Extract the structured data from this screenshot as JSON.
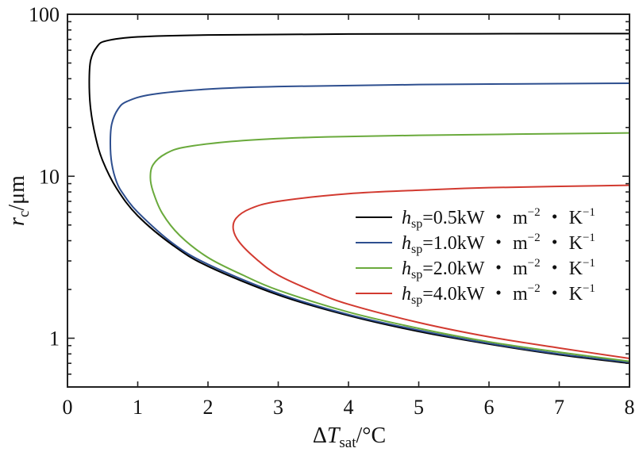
{
  "chart_data": {
    "type": "line",
    "x_axis": {
      "label_main": "ΔT",
      "label_italic": "T",
      "label_sub": "sat",
      "label_unit": "/°C",
      "range": [
        0,
        8
      ],
      "ticks": [
        0,
        1,
        2,
        3,
        4,
        5,
        6,
        7,
        8
      ],
      "tick_labels": [
        "0",
        "1",
        "2",
        "3",
        "4",
        "5",
        "6",
        "7",
        "8"
      ]
    },
    "y_axis": {
      "label_italic": "r",
      "label_sub": "c",
      "label_unit": "/μm",
      "scale": "log",
      "range": [
        0.5,
        100
      ],
      "ticks": [
        1,
        10,
        100
      ],
      "tick_labels": [
        "1",
        "10",
        "100"
      ]
    },
    "grid": false,
    "legend_position": "center-right",
    "series": [
      {
        "name": "hsp=0.5kW・m−2・K−1",
        "legend_h": "h",
        "legend_sub": "sp",
        "legend_value": "=0.5kW ・ m",
        "legend_exp1": "−2",
        "legend_mid": " ・ K",
        "legend_exp2": "−1",
        "color": "#000000",
        "points": [
          [
            8,
            0.7
          ],
          [
            7,
            0.79
          ],
          [
            6,
            0.92
          ],
          [
            5,
            1.1
          ],
          [
            4,
            1.38
          ],
          [
            3,
            1.85
          ],
          [
            2,
            2.78
          ],
          [
            1.5,
            3.75
          ],
          [
            1,
            5.7
          ],
          [
            0.7,
            8.4
          ],
          [
            0.5,
            12.5
          ],
          [
            0.4,
            17.5
          ],
          [
            0.33,
            26
          ],
          [
            0.31,
            38
          ],
          [
            0.33,
            52
          ],
          [
            0.42,
            63
          ],
          [
            0.55,
            68.5
          ],
          [
            1,
            72.5
          ],
          [
            2,
            74.5
          ],
          [
            4,
            75.5
          ],
          [
            8,
            76
          ]
        ]
      },
      {
        "name": "hsp=1.0kW・m−2・K−1",
        "legend_h": "h",
        "legend_sub": "sp",
        "legend_value": "=1.0kW ・ m",
        "legend_exp1": "−2",
        "legend_mid": " ・ K",
        "legend_exp2": "−1",
        "color": "#2e4f8f",
        "points": [
          [
            8,
            0.71
          ],
          [
            7,
            0.8
          ],
          [
            6,
            0.93
          ],
          [
            5,
            1.12
          ],
          [
            4,
            1.4
          ],
          [
            3,
            1.89
          ],
          [
            2,
            2.86
          ],
          [
            1.5,
            3.85
          ],
          [
            1,
            6.0
          ],
          [
            0.8,
            7.7
          ],
          [
            0.7,
            9.2
          ],
          [
            0.63,
            12
          ],
          [
            0.61,
            16
          ],
          [
            0.63,
            21
          ],
          [
            0.72,
            26
          ],
          [
            0.85,
            29
          ],
          [
            1.2,
            32
          ],
          [
            2,
            34.5
          ],
          [
            3,
            35.8
          ],
          [
            5,
            36.8
          ],
          [
            8,
            37.5
          ]
        ]
      },
      {
        "name": "hsp=2.0kW・m−2・K−1",
        "legend_h": "h",
        "legend_sub": "sp",
        "legend_value": "=2.0kW ・ m",
        "legend_exp1": "−2",
        "legend_mid": " ・ K",
        "legend_exp2": "−1",
        "color": "#6aaa3c",
        "points": [
          [
            8,
            0.72
          ],
          [
            7,
            0.82
          ],
          [
            6,
            0.95
          ],
          [
            5,
            1.15
          ],
          [
            4,
            1.45
          ],
          [
            3,
            1.98
          ],
          [
            2.5,
            2.45
          ],
          [
            2,
            3.15
          ],
          [
            1.6,
            4.3
          ],
          [
            1.35,
            5.9
          ],
          [
            1.22,
            8.0
          ],
          [
            1.18,
            9.8
          ],
          [
            1.22,
            11.8
          ],
          [
            1.4,
            13.8
          ],
          [
            1.7,
            15.2
          ],
          [
            2.5,
            16.6
          ],
          [
            3.5,
            17.4
          ],
          [
            5,
            17.9
          ],
          [
            8,
            18.5
          ]
        ]
      },
      {
        "name": "hsp=4.0kW・m−2・K−1",
        "legend_h": "h",
        "legend_sub": "sp",
        "legend_value": "=4.0kW ・ m",
        "legend_exp1": "−2",
        "legend_mid": " ・ K",
        "legend_exp2": "−1",
        "color": "#d23a30",
        "points": [
          [
            8,
            0.75
          ],
          [
            7,
            0.87
          ],
          [
            6,
            1.02
          ],
          [
            5,
            1.25
          ],
          [
            4,
            1.62
          ],
          [
            3.5,
            1.95
          ],
          [
            3,
            2.45
          ],
          [
            2.7,
            3.05
          ],
          [
            2.45,
            3.9
          ],
          [
            2.36,
            4.7
          ],
          [
            2.4,
            5.5
          ],
          [
            2.6,
            6.3
          ],
          [
            3,
            7.0
          ],
          [
            4,
            7.8
          ],
          [
            5,
            8.2
          ],
          [
            6,
            8.5
          ],
          [
            8,
            8.8
          ]
        ]
      }
    ]
  }
}
